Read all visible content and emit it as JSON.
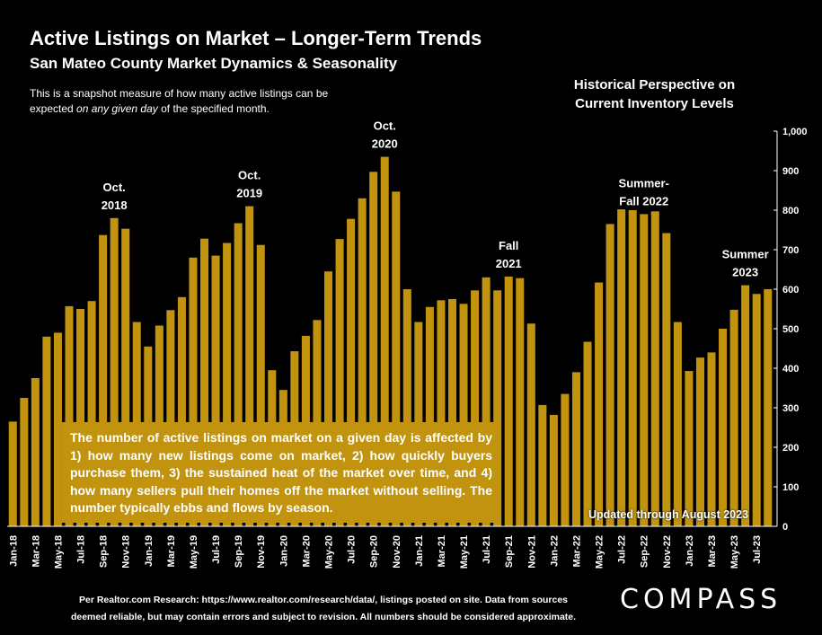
{
  "header": {
    "title": "Active Listings on Market – Longer-Term Trends",
    "subtitle": "San Mateo County Market Dynamics & Seasonality",
    "note_part1": "This is a snapshot measure of how many active listings can be expected ",
    "note_emph": "on any given day",
    "note_part2": " of the specified month.",
    "historical_line1": "Historical Perspective on",
    "historical_line2": "Current Inventory Levels"
  },
  "info_box": "The number of active listings on market on a given day is affected by 1) how many new listings come on market, 2) how quickly buyers purchase them, 3) the sustained heat of the market over time, and 4) how many sellers pull their homes off the market without selling. The number typically ebbs and flows by season.",
  "updated_text": "Updated through August 2023",
  "footer": {
    "line1": "Per Realtor.com Research:  https://www.realtor.com/research/data/, listings posted on site. Data from sources",
    "line2": "deemed reliable, but may contain errors and subject to revision. All numbers should be considered approximate."
  },
  "logo_text": "COMPASS",
  "chart_data": {
    "type": "bar",
    "bar_color": "#c1930f",
    "background": "#000000",
    "ylim": [
      0,
      1000
    ],
    "yticks": [
      "0",
      "100",
      "200",
      "300",
      "400",
      "500",
      "600",
      "700",
      "800",
      "900",
      "1,000"
    ],
    "y_axis_side": "right",
    "grid": false,
    "categories": [
      "Jan-18",
      "Feb-18",
      "Mar-18",
      "Apr-18",
      "May-18",
      "Jun-18",
      "Jul-18",
      "Aug-18",
      "Sep-18",
      "Oct-18",
      "Nov-18",
      "Dec-18",
      "Jan-19",
      "Feb-19",
      "Mar-19",
      "Apr-19",
      "May-19",
      "Jun-19",
      "Jul-19",
      "Aug-19",
      "Sep-19",
      "Oct-19",
      "Nov-19",
      "Dec-19",
      "Jan-20",
      "Feb-20",
      "Mar-20",
      "Apr-20",
      "May-20",
      "Jun-20",
      "Jul-20",
      "Aug-20",
      "Sep-20",
      "Oct-20",
      "Nov-20",
      "Dec-20",
      "Jan-21",
      "Feb-21",
      "Mar-21",
      "Apr-21",
      "May-21",
      "Jun-21",
      "Jul-21",
      "Aug-21",
      "Sep-21",
      "Oct-21",
      "Nov-21",
      "Dec-21",
      "Jan-22",
      "Feb-22",
      "Mar-22",
      "Apr-22",
      "May-22",
      "Jun-22",
      "Jul-22",
      "Aug-22",
      "Sep-22",
      "Oct-22",
      "Nov-22",
      "Dec-22",
      "Jan-23",
      "Feb-23",
      "Mar-23",
      "Apr-23",
      "May-23",
      "Jun-23",
      "Jul-23",
      "Aug-23"
    ],
    "tick_labels": [
      "Jan-18",
      "",
      "Mar-18",
      "",
      "May-18",
      "",
      "Jul-18",
      "",
      "Sep-18",
      "",
      "Nov-18",
      "",
      "Jan-19",
      "",
      "Mar-19",
      "",
      "May-19",
      "",
      "Jul-19",
      "",
      "Sep-19",
      "",
      "Nov-19",
      "",
      "Jan-20",
      "",
      "Mar-20",
      "",
      "May-20",
      "",
      "Jul-20",
      "",
      "Sep-20",
      "",
      "Nov-20",
      "",
      "Jan-21",
      "",
      "Mar-21",
      "",
      "May-21",
      "",
      "Jul-21",
      "",
      "Sep-21",
      "",
      "Nov-21",
      "",
      "Jan-22",
      "",
      "Mar-22",
      "",
      "May-22",
      "",
      "Jul-22",
      "",
      "Sep-22",
      "",
      "Nov-22",
      "",
      "Jan-23",
      "",
      "Mar-23",
      "",
      "May-23",
      "",
      "Jul-23",
      ""
    ],
    "values": [
      265,
      325,
      375,
      480,
      490,
      557,
      550,
      570,
      737,
      780,
      753,
      517,
      455,
      508,
      547,
      580,
      680,
      728,
      685,
      717,
      767,
      810,
      712,
      395,
      345,
      443,
      482,
      522,
      645,
      727,
      778,
      830,
      897,
      935,
      847,
      600,
      517,
      555,
      572,
      575,
      563,
      597,
      630,
      597,
      632,
      628,
      513,
      307,
      282,
      335,
      390,
      467,
      617,
      765,
      802,
      800,
      790,
      797,
      742,
      517,
      393,
      427,
      440,
      500,
      548,
      610,
      588,
      600
    ],
    "annotations": [
      {
        "lines": [
          "Oct.",
          "2018"
        ],
        "index": 9
      },
      {
        "lines": [
          "Oct.",
          "2019"
        ],
        "index": 21
      },
      {
        "lines": [
          "Oct.",
          "2020"
        ],
        "index": 33
      },
      {
        "lines": [
          "Fall",
          "2021"
        ],
        "index": 44
      },
      {
        "lines": [
          "Summer-",
          "Fall 2022"
        ],
        "index": 56
      },
      {
        "lines": [
          "Summer",
          "2023"
        ],
        "index": 65
      }
    ]
  }
}
